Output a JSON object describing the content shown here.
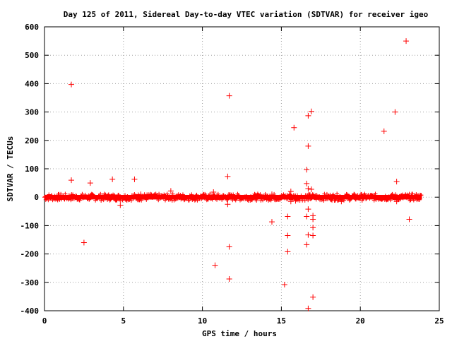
{
  "chart_data": {
    "type": "scatter",
    "title": "Day 125 of 2011, Sidereal Day-to-day VTEC variation (SDTVAR) for receiver igeo",
    "xlabel": "GPS time / hours",
    "ylabel": "SDTVAR / TECUs",
    "xlim": [
      0,
      25
    ],
    "ylim": [
      -400,
      600
    ],
    "xticks": [
      0,
      5,
      10,
      15,
      20,
      25
    ],
    "yticks": [
      -400,
      -300,
      -200,
      -100,
      0,
      100,
      200,
      300,
      400,
      500,
      600
    ],
    "grid": true,
    "marker": "+",
    "color": "#ff0000",
    "dense_band": {
      "x_range": [
        0,
        23.9
      ],
      "y_range": [
        -8,
        8
      ]
    },
    "points": [
      [
        1.7,
        397
      ],
      [
        1.7,
        60
      ],
      [
        2.5,
        -160
      ],
      [
        2.9,
        50
      ],
      [
        4.3,
        63
      ],
      [
        4.8,
        -28
      ],
      [
        5.7,
        63
      ],
      [
        6.1,
        10
      ],
      [
        8.0,
        22
      ],
      [
        10.7,
        18
      ],
      [
        10.8,
        -240
      ],
      [
        11.6,
        73
      ],
      [
        11.6,
        -25
      ],
      [
        11.7,
        357
      ],
      [
        11.7,
        -175
      ],
      [
        11.7,
        -288
      ],
      [
        14.4,
        -87
      ],
      [
        14.4,
        10
      ],
      [
        15.2,
        -308
      ],
      [
        15.4,
        -68
      ],
      [
        15.4,
        -135
      ],
      [
        15.4,
        -192
      ],
      [
        15.5,
        10
      ],
      [
        15.6,
        20
      ],
      [
        15.6,
        -15
      ],
      [
        15.8,
        245
      ],
      [
        15.9,
        -13
      ],
      [
        16.6,
        97
      ],
      [
        16.6,
        48
      ],
      [
        16.6,
        -68
      ],
      [
        16.6,
        -167
      ],
      [
        16.7,
        180
      ],
      [
        16.7,
        287
      ],
      [
        16.7,
        30
      ],
      [
        16.7,
        -42
      ],
      [
        16.7,
        -133
      ],
      [
        16.7,
        -392
      ],
      [
        16.9,
        302
      ],
      [
        16.9,
        28
      ],
      [
        17.0,
        -65
      ],
      [
        17.0,
        -78
      ],
      [
        17.0,
        -107
      ],
      [
        17.0,
        -135
      ],
      [
        17.0,
        -352
      ],
      [
        18.8,
        -15
      ],
      [
        21.5,
        232
      ],
      [
        22.2,
        300
      ],
      [
        22.3,
        55
      ],
      [
        22.3,
        -15
      ],
      [
        22.9,
        550
      ],
      [
        23.1,
        -78
      ]
    ]
  }
}
